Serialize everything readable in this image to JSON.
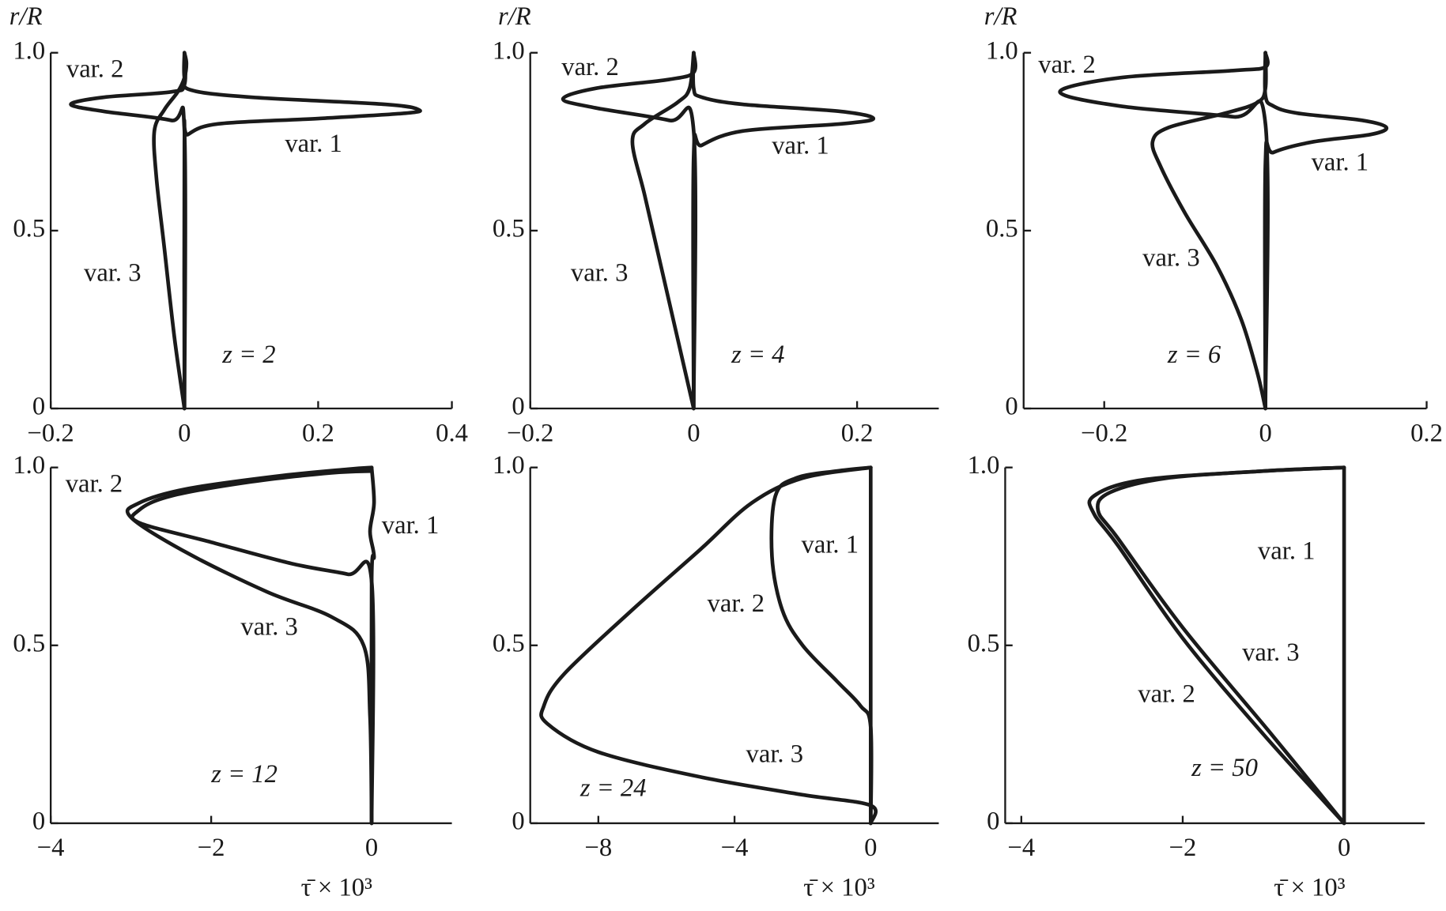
{
  "chart_data": [
    {
      "type": "line",
      "ylabel": "r/R",
      "annotation": "z = 2",
      "xlim": [
        -0.2,
        0.4
      ],
      "ylim": [
        0,
        1
      ],
      "xticks": [
        {
          "value": -0.2,
          "label": "−0.2"
        },
        0,
        0.2,
        0.4
      ],
      "yticks": [
        0,
        0.5,
        {
          "value": 1,
          "label": "1.0"
        }
      ],
      "series": [
        {
          "name": "var. 1",
          "color": "#1a1a1a",
          "x": [
            0,
            0,
            0.005,
            0.05,
            0.2,
            0.33,
            0.35,
            0.3,
            0.1,
            0.01,
            0,
            0
          ],
          "values": [
            0,
            0.75,
            0.77,
            0.8,
            0.815,
            0.83,
            0.84,
            0.855,
            0.875,
            0.895,
            0.93,
            1
          ]
        },
        {
          "name": "var. 2",
          "color": "#1a1a1a",
          "x": [
            0,
            0,
            -0.02,
            -0.12,
            -0.17,
            -0.12,
            -0.02,
            0,
            0
          ],
          "values": [
            0,
            0.78,
            0.81,
            0.835,
            0.855,
            0.875,
            0.89,
            0.91,
            1
          ]
        },
        {
          "name": "var. 3",
          "color": "#1a1a1a",
          "x": [
            0,
            -0.015,
            -0.03,
            -0.042,
            -0.045,
            -0.03,
            -0.01,
            0,
            0.003,
            0
          ],
          "values": [
            0,
            0.2,
            0.45,
            0.65,
            0.78,
            0.84,
            0.89,
            0.93,
            0.97,
            1
          ]
        }
      ]
    },
    {
      "type": "line",
      "ylabel": "r/R",
      "annotation": "z = 4",
      "xlim": [
        -0.2,
        0.3
      ],
      "ylim": [
        0,
        1
      ],
      "xticks": [
        {
          "value": -0.2,
          "label": "−0.2"
        },
        0,
        0.2
      ],
      "yticks": [
        0,
        0.5,
        {
          "value": 1,
          "label": "1.0"
        }
      ],
      "series": [
        {
          "name": "var. 1",
          "color": "#1a1a1a",
          "x": [
            0,
            0,
            0.01,
            0.06,
            0.18,
            0.22,
            0.18,
            0.06,
            0.01,
            0,
            0
          ],
          "values": [
            0,
            0.71,
            0.74,
            0.78,
            0.8,
            0.815,
            0.835,
            0.855,
            0.875,
            0.9,
            1
          ]
        },
        {
          "name": "var. 2",
          "color": "#1a1a1a",
          "x": [
            0,
            0,
            -0.03,
            -0.12,
            -0.16,
            -0.12,
            -0.03,
            0,
            0
          ],
          "values": [
            0,
            0.78,
            0.81,
            0.845,
            0.87,
            0.9,
            0.925,
            0.945,
            1
          ]
        },
        {
          "name": "var. 3",
          "color": "#1a1a1a",
          "x": [
            0,
            -0.02,
            -0.04,
            -0.06,
            -0.075,
            -0.06,
            -0.02,
            -0.005,
            0
          ],
          "values": [
            0,
            0.2,
            0.4,
            0.6,
            0.75,
            0.8,
            0.86,
            0.9,
            1
          ]
        }
      ]
    },
    {
      "type": "line",
      "ylabel": "r/R",
      "annotation": "z = 6",
      "xlim": [
        -0.3,
        0.2
      ],
      "ylim": [
        0,
        1
      ],
      "xticks": [
        {
          "value": -0.2,
          "label": "−0.2"
        },
        0,
        0.2
      ],
      "yticks": [
        0,
        0.5,
        {
          "value": 1,
          "label": "1.0"
        }
      ],
      "series": [
        {
          "name": "var. 1",
          "color": "#1a1a1a",
          "x": [
            0,
            0,
            0.01,
            0.06,
            0.13,
            0.15,
            0.12,
            0.04,
            0.01,
            0,
            0
          ],
          "values": [
            0,
            0.69,
            0.72,
            0.75,
            0.77,
            0.79,
            0.81,
            0.83,
            0.85,
            0.88,
            1
          ]
        },
        {
          "name": "var. 2",
          "color": "#1a1a1a",
          "x": [
            0,
            0,
            -0.04,
            -0.18,
            -0.255,
            -0.18,
            -0.04,
            0,
            0
          ],
          "values": [
            0,
            0.8,
            0.82,
            0.85,
            0.89,
            0.93,
            0.95,
            0.96,
            1
          ]
        },
        {
          "name": "var. 3",
          "color": "#1a1a1a",
          "x": [
            0,
            -0.01,
            -0.03,
            -0.06,
            -0.1,
            -0.13,
            -0.14,
            -0.12,
            -0.05,
            -0.01,
            0,
            0
          ],
          "values": [
            0,
            0.1,
            0.25,
            0.4,
            0.55,
            0.68,
            0.75,
            0.79,
            0.83,
            0.86,
            0.9,
            1
          ]
        }
      ]
    },
    {
      "type": "line",
      "xlabel": "τ̄ × 10³",
      "annotation": "z = 12",
      "xlim": [
        -4,
        1
      ],
      "ylim": [
        0,
        1
      ],
      "xticks": [
        {
          "value": -4,
          "label": "−4"
        },
        {
          "value": -2,
          "label": "−2"
        },
        0
      ],
      "yticks": [
        0,
        0.5,
        {
          "value": 1,
          "label": "1.0"
        }
      ],
      "series": [
        {
          "name": "var. 1",
          "color": "#1a1a1a",
          "x": [
            0,
            0,
            0.03,
            -0.02,
            0.03,
            0
          ],
          "values": [
            0,
            0.68,
            0.75,
            0.82,
            0.9,
            1
          ]
        },
        {
          "name": "var. 2",
          "color": "#1a1a1a",
          "x": [
            0,
            0,
            -0.3,
            -1,
            -2,
            -2.9,
            -2.9,
            -2.5,
            -1.5,
            -0.5,
            0
          ],
          "values": [
            0,
            0.68,
            0.7,
            0.73,
            0.79,
            0.845,
            0.88,
            0.92,
            0.96,
            0.985,
            0.99
          ]
        },
        {
          "name": "var. 3",
          "color": "#1a1a1a",
          "x": [
            0,
            -0.02,
            -0.1,
            -0.5,
            -1.3,
            -2.3,
            -3,
            -2.9,
            -2.3,
            -1.2,
            -0.3,
            0
          ],
          "values": [
            0,
            0.3,
            0.5,
            0.58,
            0.65,
            0.76,
            0.86,
            0.9,
            0.94,
            0.975,
            0.995,
            1
          ]
        }
      ]
    },
    {
      "type": "line",
      "xlabel": "τ̄ × 10³",
      "annotation": "z = 24",
      "xlim": [
        -10,
        2
      ],
      "ylim": [
        0,
        1
      ],
      "xticks": [
        {
          "value": -8,
          "label": "−8"
        },
        {
          "value": -4,
          "label": "−4"
        },
        0
      ],
      "yticks": [
        0,
        0.5,
        {
          "value": 1,
          "label": "1.0"
        }
      ],
      "series": [
        {
          "name": "var. 1",
          "color": "#1a1a1a",
          "x": [
            0,
            0
          ],
          "values": [
            0,
            1
          ]
        },
        {
          "name": "var. 2",
          "color": "#1a1a1a",
          "x": [
            0,
            0,
            -0.3,
            -1,
            -2,
            -2.6,
            -2.9,
            -2.8,
            -2.2,
            -1,
            0
          ],
          "values": [
            0,
            0.27,
            0.33,
            0.4,
            0.5,
            0.6,
            0.75,
            0.92,
            0.97,
            0.99,
            1
          ]
        },
        {
          "name": "var. 3",
          "color": "#1a1a1a",
          "x": [
            0,
            0,
            -2,
            -5,
            -8,
            -9.5,
            -9.6,
            -9,
            -7,
            -5,
            -3.5,
            -2,
            0
          ],
          "values": [
            0,
            0.05,
            0.08,
            0.13,
            0.2,
            0.28,
            0.33,
            0.42,
            0.6,
            0.77,
            0.9,
            0.97,
            1
          ]
        }
      ]
    },
    {
      "type": "line",
      "xlabel": "τ̄ × 10³",
      "annotation": "z = 50",
      "xlim": [
        -4.2,
        1
      ],
      "ylim": [
        0,
        1
      ],
      "xticks": [
        {
          "value": -4,
          "label": "−4"
        },
        {
          "value": -2,
          "label": "−2"
        },
        0
      ],
      "yticks": [
        0,
        0.5,
        {
          "value": 1,
          "label": "1.0"
        }
      ],
      "series": [
        {
          "name": "var. 1",
          "color": "#1a1a1a",
          "x": [
            0,
            0
          ],
          "values": [
            0,
            1
          ]
        },
        {
          "name": "var. 2",
          "color": "#1a1a1a",
          "x": [
            0,
            -1,
            -2,
            -2.8,
            -3.1,
            -3.1,
            -2.5,
            -1,
            0
          ],
          "values": [
            0,
            0.25,
            0.52,
            0.78,
            0.87,
            0.92,
            0.965,
            0.99,
            1
          ]
        },
        {
          "name": "var. 3",
          "color": "#1a1a1a",
          "x": [
            0,
            -0.9,
            -2,
            -2.8,
            -3.05,
            -2.9,
            -2.2,
            -1,
            0
          ],
          "values": [
            0,
            0.25,
            0.55,
            0.8,
            0.88,
            0.93,
            0.97,
            0.99,
            1
          ]
        }
      ]
    }
  ]
}
